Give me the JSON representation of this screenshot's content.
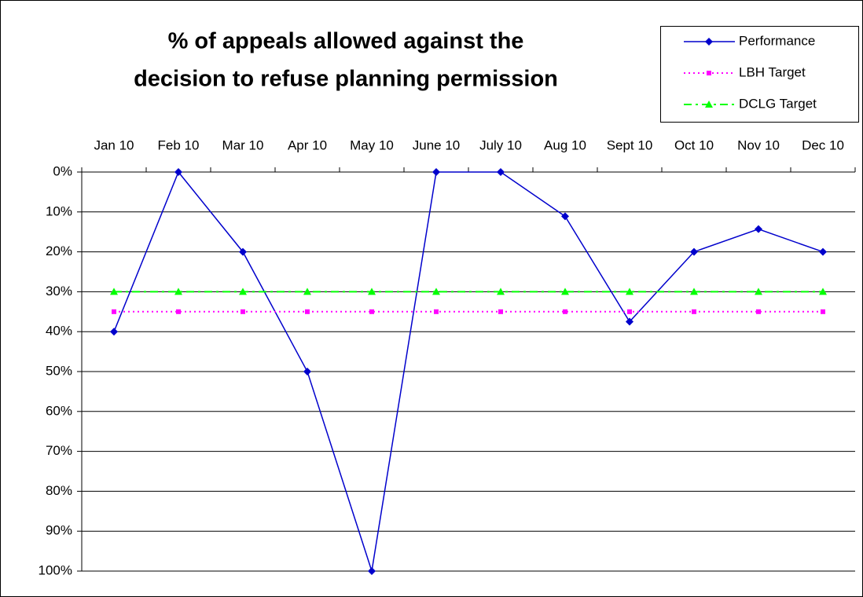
{
  "chart_data": {
    "type": "line",
    "title": [
      "% of appeals allowed against the",
      "decision to refuse planning permission"
    ],
    "categories": [
      "Jan 10",
      "Feb 10",
      "Mar 10",
      "Apr 10",
      "May 10",
      "June 10",
      "July 10",
      "Aug 10",
      "Sept 10",
      "Oct 10",
      "Nov 10",
      "Dec 10"
    ],
    "series": [
      {
        "name": "Performance",
        "color": "#0000cc",
        "marker": "diamond",
        "line_style": "solid",
        "values": [
          40,
          0,
          20,
          50,
          100,
          0,
          0,
          11.1,
          37.5,
          20,
          14.3,
          20
        ]
      },
      {
        "name": "LBH Target",
        "color": "#ff00ff",
        "marker": "square",
        "line_style": "dotted",
        "values": [
          35,
          35,
          35,
          35,
          35,
          35,
          35,
          35,
          35,
          35,
          35,
          35
        ]
      },
      {
        "name": "DCLG Target",
        "color": "#00ff00",
        "marker": "triangle",
        "line_style": "dashdot",
        "values": [
          30,
          30,
          30,
          30,
          30,
          30,
          30,
          30,
          30,
          30,
          30,
          30
        ]
      }
    ],
    "ylim": [
      100,
      0
    ],
    "yticks": [
      {
        "value": 0,
        "label": "0%"
      },
      {
        "value": 10,
        "label": "10%"
      },
      {
        "value": 20,
        "label": "20%"
      },
      {
        "value": 30,
        "label": "30%"
      },
      {
        "value": 40,
        "label": "40%"
      },
      {
        "value": 50,
        "label": "50%"
      },
      {
        "value": 60,
        "label": "60%"
      },
      {
        "value": 70,
        "label": "70%"
      },
      {
        "value": 80,
        "label": "80%"
      },
      {
        "value": 90,
        "label": "90%"
      },
      {
        "value": 100,
        "label": "100%"
      }
    ],
    "grid": true,
    "legend": "top-right",
    "x_axis_position": "top"
  }
}
